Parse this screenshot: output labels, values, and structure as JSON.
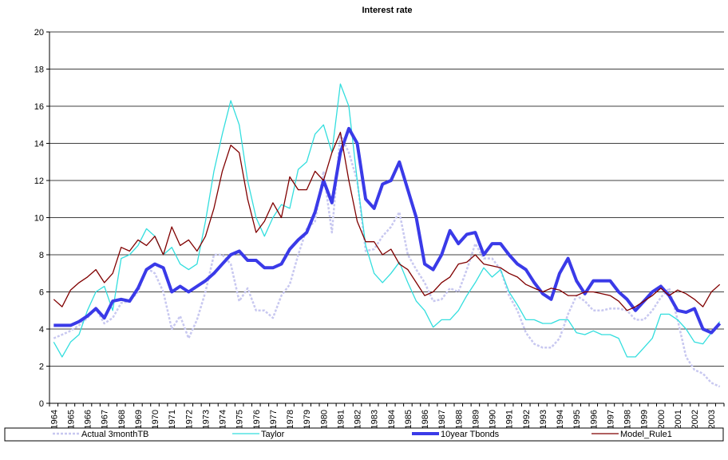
{
  "chart_data": {
    "type": "line",
    "title": "Interest rate",
    "categories": [
      "1964",
      null,
      "1965",
      null,
      "1966",
      null,
      "1967",
      null,
      "1968",
      null,
      "1969",
      null,
      "1970",
      null,
      "1971",
      null,
      "1972",
      null,
      "1973",
      null,
      "1974",
      null,
      "1975",
      null,
      "1976",
      null,
      "1977",
      null,
      "1978",
      null,
      "1979",
      null,
      "1980",
      null,
      "1981",
      null,
      "1982",
      null,
      "1983",
      null,
      "1984",
      null,
      "1985",
      null,
      "1986",
      null,
      "1987",
      null,
      "1988",
      null,
      "1989",
      null,
      "1990",
      null,
      "1991",
      null,
      "1992",
      null,
      "1993",
      null,
      "1994",
      null,
      "1995",
      null,
      "1996",
      null,
      "1997",
      null,
      "1998",
      null,
      "1999",
      null,
      "2000",
      null,
      "2001",
      null,
      "2002",
      null,
      "2003",
      null
    ],
    "series": [
      {
        "name": "Actual 3monthTB",
        "color": "#c8c8f0",
        "dash": true,
        "width": 2.5,
        "values": [
          3.5,
          3.7,
          3.9,
          4.2,
          4.6,
          5.1,
          4.3,
          4.6,
          5.4,
          5.5,
          6.0,
          7.3,
          7.0,
          6.0,
          4.0,
          4.7,
          3.5,
          4.5,
          6.0,
          8.0,
          8.0,
          7.5,
          5.5,
          6.2,
          5.0,
          5.0,
          4.6,
          5.8,
          6.4,
          8.0,
          9.4,
          9.8,
          12.5,
          9.2,
          14.5,
          13.5,
          12.0,
          8.2,
          8.3,
          9.0,
          9.5,
          10.3,
          8.0,
          7.2,
          6.5,
          5.5,
          5.6,
          6.2,
          6.0,
          7.2,
          8.6,
          7.8,
          7.8,
          7.2,
          5.8,
          5.0,
          3.8,
          3.2,
          3.0,
          3.0,
          3.5,
          4.8,
          5.8,
          5.5,
          5.0,
          5.0,
          5.1,
          5.1,
          5.0,
          4.5,
          4.5,
          5.0,
          5.7,
          6.2,
          4.5,
          2.5,
          1.8,
          1.6,
          1.1,
          0.9
        ]
      },
      {
        "name": "Taylor",
        "color": "#33dede",
        "dash": false,
        "width": 1.3,
        "values": [
          3.3,
          2.5,
          3.3,
          3.7,
          5.0,
          6.0,
          6.3,
          5.0,
          7.8,
          8.0,
          8.5,
          9.4,
          9.0,
          8.0,
          8.4,
          7.5,
          7.2,
          7.5,
          9.8,
          12.5,
          14.5,
          16.3,
          15.0,
          12.0,
          10.0,
          9.0,
          10.0,
          10.7,
          10.5,
          12.6,
          13.0,
          14.5,
          15.0,
          13.5,
          17.2,
          16.0,
          12.0,
          8.5,
          7.0,
          6.5,
          7.0,
          7.6,
          6.5,
          5.5,
          5.0,
          4.1,
          4.5,
          4.5,
          5.0,
          5.8,
          6.5,
          7.3,
          6.8,
          7.2,
          6.0,
          5.3,
          4.5,
          4.5,
          4.3,
          4.3,
          4.5,
          4.5,
          3.8,
          3.7,
          3.9,
          3.7,
          3.7,
          3.5,
          2.5,
          2.5,
          3.0,
          3.5,
          4.8,
          4.8,
          4.5,
          4.0,
          3.3,
          3.2,
          3.8,
          4.4
        ]
      },
      {
        "name": "10year Tbonds",
        "color": "#3a3ae8",
        "dash": false,
        "width": 4,
        "values": [
          4.2,
          4.2,
          4.2,
          4.4,
          4.7,
          5.1,
          4.6,
          5.5,
          5.6,
          5.5,
          6.2,
          7.2,
          7.5,
          7.3,
          6.0,
          6.3,
          6.0,
          6.3,
          6.6,
          7.0,
          7.5,
          8.0,
          8.2,
          7.7,
          7.7,
          7.3,
          7.3,
          7.5,
          8.3,
          8.8,
          9.2,
          10.3,
          12.0,
          10.8,
          13.5,
          14.8,
          14.0,
          11.0,
          10.5,
          11.8,
          12.0,
          13.0,
          11.5,
          10.0,
          7.5,
          7.2,
          8.0,
          9.3,
          8.6,
          9.1,
          9.2,
          8.0,
          8.6,
          8.6,
          8.0,
          7.5,
          7.2,
          6.5,
          5.9,
          5.6,
          7.0,
          7.8,
          6.6,
          5.9,
          6.6,
          6.6,
          6.6,
          6.0,
          5.6,
          5.0,
          5.5,
          6.0,
          6.3,
          5.8,
          5.0,
          4.9,
          5.1,
          4.0,
          3.8,
          4.3
        ]
      },
      {
        "name": "Model_Rule1",
        "color": "#800000",
        "dash": false,
        "width": 1.3,
        "values": [
          5.6,
          5.2,
          6.1,
          6.5,
          6.8,
          7.2,
          6.5,
          7.0,
          8.4,
          8.2,
          8.8,
          8.5,
          9.0,
          8.0,
          9.5,
          8.5,
          8.8,
          8.2,
          9.0,
          10.5,
          12.5,
          13.9,
          13.5,
          11.0,
          9.2,
          9.8,
          10.8,
          10.0,
          12.2,
          11.5,
          11.5,
          12.5,
          12.0,
          13.5,
          14.6,
          12.0,
          9.8,
          8.7,
          8.7,
          8.0,
          8.3,
          7.5,
          7.2,
          6.5,
          5.8,
          6.0,
          6.5,
          6.8,
          7.5,
          7.6,
          8.0,
          7.5,
          7.4,
          7.3,
          7.0,
          6.8,
          6.4,
          6.2,
          6.0,
          6.2,
          6.1,
          5.8,
          5.8,
          6.0,
          6.0,
          5.9,
          5.8,
          5.5,
          5.0,
          5.2,
          5.5,
          5.8,
          6.2,
          5.8,
          6.1,
          5.9,
          5.6,
          5.2,
          6.0,
          6.4
        ]
      }
    ],
    "ylim": [
      0,
      20
    ],
    "yticks": [
      0,
      2,
      4,
      6,
      8,
      10,
      12,
      14,
      16,
      18,
      20
    ],
    "grid": true
  }
}
